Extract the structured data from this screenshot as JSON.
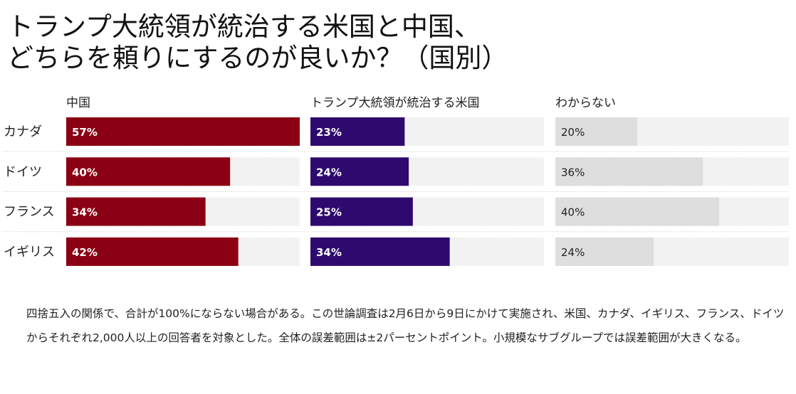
{
  "title": {
    "line1": "トランプ大統領が統治する米国と中国、",
    "line2": "どちらを頼りにするのが良いか？（国別）"
  },
  "chart_data": {
    "type": "bar",
    "orientation": "horizontal",
    "layout": "small-multiples",
    "categories": [
      "カナダ",
      "ドイツ",
      "フランス",
      "イギリス"
    ],
    "series": [
      {
        "name": "中国",
        "values": [
          57,
          40,
          34,
          42
        ],
        "color": "#8b0012"
      },
      {
        "name": "トランプ大統領が統治する米国",
        "values": [
          23,
          24,
          25,
          34
        ],
        "color": "#2e0a6e"
      },
      {
        "name": "わからない",
        "values": [
          20,
          36,
          40,
          24
        ],
        "color": "#dedede"
      }
    ],
    "value_suffix": "%",
    "xlim": [
      0,
      57
    ],
    "track_color": "#f2f2f2"
  },
  "footnote": "四捨五入の関係で、合計が100%にならない場合がある。この世論調査は2月6日から9日にかけて実施され、米国、カナダ、イギリス、フランス、ドイツからそれぞれ2,000人以上の回答者を対象とした。全体の誤差範囲は±2パーセントポイント。小規模なサブグループでは誤差範囲が大きくなる。"
}
